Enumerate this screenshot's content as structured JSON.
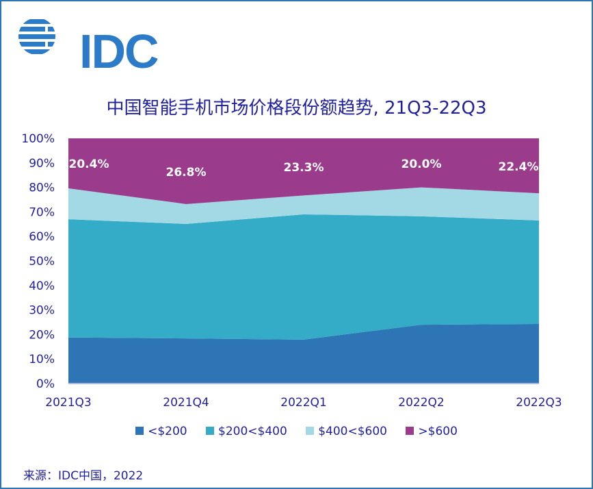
{
  "logo": {
    "text": "IDC",
    "icon": "idc-globe-icon",
    "color": "#2b7bc8"
  },
  "source": "来源：IDC中国，2022",
  "chart_data": {
    "type": "area",
    "stacked": true,
    "normalized": true,
    "title": "中国智能手机市场价格段份额趋势, 21Q3-22Q3",
    "xlabel": "",
    "ylabel": "",
    "categories": [
      "2021Q3",
      "2021Q4",
      "2022Q1",
      "2022Q2",
      "2022Q3"
    ],
    "ylim": [
      0,
      100
    ],
    "yticks": [
      "0%",
      "10%",
      "20%",
      "30%",
      "40%",
      "50%",
      "60%",
      "70%",
      "80%",
      "90%",
      "100%"
    ],
    "grid": false,
    "legend_position": "bottom",
    "series": [
      {
        "name": "<$200",
        "color": "#2e75b6",
        "values": [
          18.8,
          18.4,
          17.9,
          24.0,
          24.3
        ]
      },
      {
        "name": "$200<$400",
        "color": "#34acc7",
        "values": [
          48.2,
          46.7,
          51.1,
          44.2,
          42.2
        ]
      },
      {
        "name": "$400<$600",
        "color": "#a3d9e5",
        "values": [
          12.6,
          8.1,
          7.7,
          11.8,
          11.1
        ]
      },
      {
        "name": ">$600",
        "color": "#9b3b8c",
        "values": [
          20.4,
          26.8,
          23.3,
          20.0,
          22.4
        ]
      }
    ],
    "data_labels": {
      "series": ">$600",
      "values": [
        "20.4%",
        "26.8%",
        "23.3%",
        "20.0%",
        "22.4%"
      ]
    }
  }
}
